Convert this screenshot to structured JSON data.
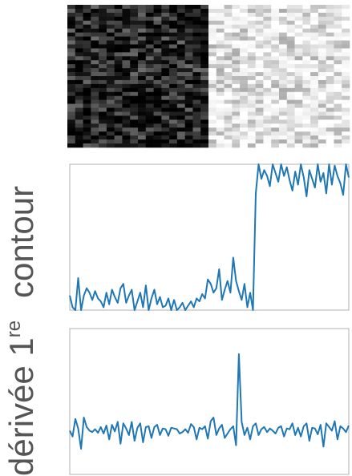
{
  "labels": {
    "contour": "contour",
    "derivee_main": "dérivée 1",
    "derivee_sup": "re"
  },
  "colors": {
    "line": "#1f77b4",
    "frame": "#b0b0b0",
    "text": "#555555"
  },
  "chart_data": [
    {
      "type": "heatmap",
      "rows": 36,
      "cols": 36,
      "edge_col": 18,
      "left_gray_range": [
        0,
        110
      ],
      "right_gray_range": [
        170,
        255
      ],
      "xlim": [
        0,
        36
      ],
      "ylim": [
        0,
        36
      ],
      "title": "",
      "xlabel": "",
      "ylabel": ""
    },
    {
      "type": "line",
      "ylabel": "contour",
      "x_range": [
        0,
        100
      ],
      "edge_index": 58,
      "xlim": [
        0,
        100
      ],
      "ylim": [
        0,
        1
      ],
      "grid": false,
      "values": [
        0.1,
        0.02,
        0.0,
        0.22,
        0.0,
        0.1,
        0.15,
        0.12,
        0.07,
        0.13,
        0.08,
        0.06,
        0.02,
        0.12,
        0.04,
        0.14,
        0.09,
        0.05,
        0.15,
        0.18,
        0.05,
        0.1,
        0.14,
        0.0,
        0.06,
        0.12,
        0.02,
        0.17,
        0.0,
        0.08,
        0.14,
        0.04,
        0.09,
        0.02,
        0.03,
        0.08,
        0.0,
        0.07,
        0.0,
        0.02,
        0.05,
        0.0,
        0.03,
        0.06,
        0.02,
        0.08,
        0.06,
        0.11,
        0.08,
        0.21,
        0.18,
        0.12,
        0.15,
        0.28,
        0.07,
        0.14,
        0.2,
        0.12,
        0.36,
        0.2,
        0.13,
        0.07,
        0.18,
        0.02,
        0.12,
        0.0,
        0.8,
        1.0,
        0.9,
        0.96,
        0.92,
        0.85,
        1.0,
        0.94,
        0.88,
        1.0,
        0.92,
        0.98,
        0.89,
        0.82,
        0.95,
        0.86,
        1.0,
        0.91,
        0.78,
        0.96,
        0.9,
        0.84,
        1.0,
        0.88,
        0.94,
        0.8,
        1.0,
        0.86,
        0.99,
        0.92,
        0.87,
        0.79,
        1.0,
        0.91
      ]
    },
    {
      "type": "line",
      "ylabel": "dérivée 1re",
      "xlim": [
        0,
        100
      ],
      "ylim": [
        -0.6,
        1.4
      ],
      "grid": false,
      "values": [
        0.0,
        -0.08,
        0.16,
        0.03,
        -0.25,
        0.18,
        0.05,
        0.0,
        -0.02,
        0.02,
        -0.03,
        0.05,
        -0.04,
        0.07,
        -0.12,
        0.08,
        -0.01,
        0.12,
        -0.18,
        0.1,
        0.03,
        -0.06,
        0.12,
        -0.14,
        0.04,
        0.1,
        -0.16,
        0.05,
        0.06,
        -0.1,
        0.05,
        0.08,
        -0.06,
        0.03,
        0.02,
        -0.07,
        0.04,
        0.03,
        0.02,
        -0.04,
        -0.02,
        0.02,
        -0.03,
        0.09,
        0.05,
        -0.12,
        0.04,
        0.02,
        0.06,
        -0.11,
        0.13,
        0.18,
        -0.06,
        0.03,
        0.08,
        -0.1,
        -0.04,
        0.02,
        0.06,
        -0.2,
        1.05,
        0.12,
        -0.06,
        0.04,
        -0.12,
        0.06,
        0.1,
        -0.06,
        0.02,
        0.05,
        -0.02,
        0.03,
        0.0,
        -0.04,
        0.04,
        0.06,
        -0.08,
        0.03,
        0.02,
        0.1,
        -0.06,
        0.04,
        -0.08,
        0.06,
        0.1,
        -0.14,
        0.04,
        0.03,
        -0.05,
        0.08,
        -0.22,
        0.1,
        0.05,
        0.0,
        0.13,
        -0.12,
        0.06,
        0.03,
        -0.02,
        0.07
      ]
    }
  ]
}
